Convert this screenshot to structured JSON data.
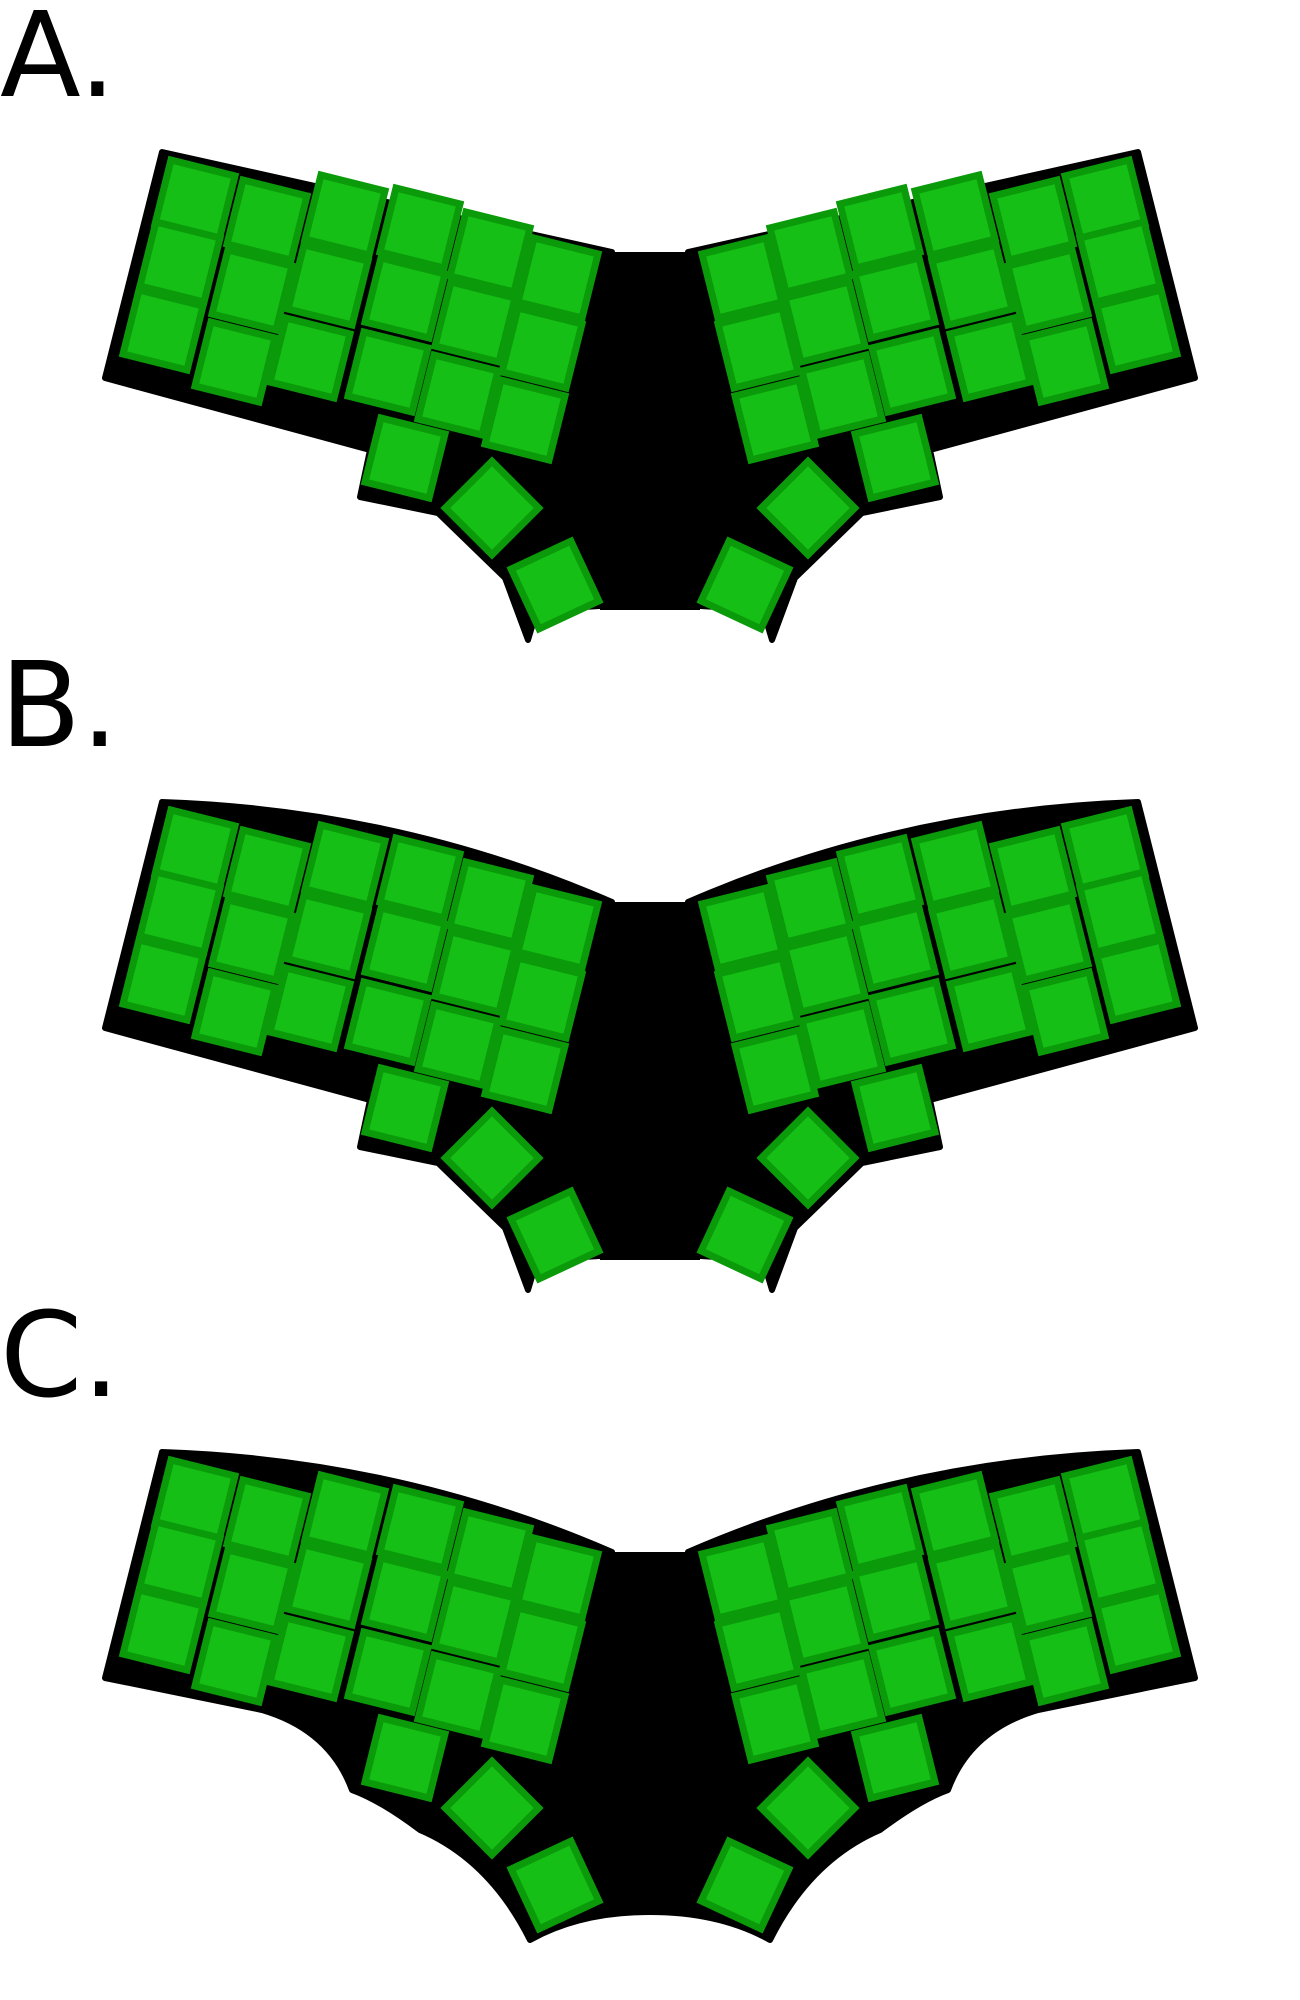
{
  "panels": [
    {
      "label": "A.",
      "variant": "straight"
    },
    {
      "label": "B.",
      "variant": "curved-top"
    },
    {
      "label": "C.",
      "variant": "curved-all"
    }
  ],
  "colors": {
    "outline": "#000000",
    "key_fill": "#15bf15",
    "key_border": "#0a9a0a",
    "label": "#000000"
  }
}
